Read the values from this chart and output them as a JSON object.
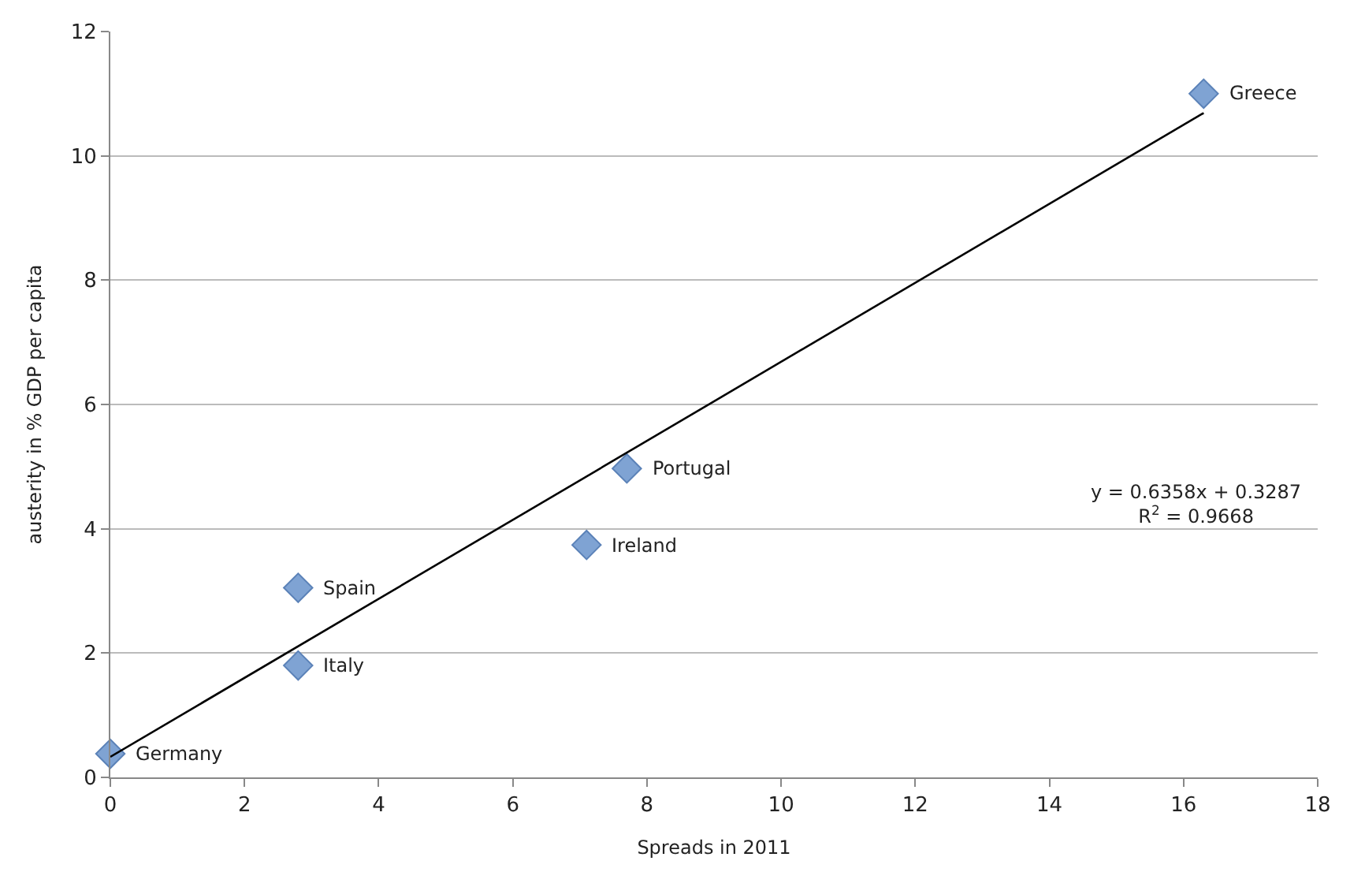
{
  "chart_data": {
    "type": "scatter",
    "xlabel": "Spreads in 2011",
    "ylabel": "austerity in % GDP per capita",
    "x": [
      0,
      2.8,
      2.8,
      7.1,
      7.7,
      16.3
    ],
    "series": [
      {
        "color": "#7fa3d3",
        "marker": "diamond",
        "values": [
          0.38,
          3.05,
          1.8,
          3.74,
          4.97,
          11.0
        ]
      },
      {
        "type": "line",
        "color": "#000000",
        "marker": "none",
        "line_style": "solid",
        "x": [
          0,
          16.3
        ],
        "values": [
          0.33,
          10.69
        ]
      }
    ],
    "annotations": [
      {
        "text": "Germany",
        "x": 0,
        "y": 0.38
      },
      {
        "text": "Spain",
        "x": 2.8,
        "y": 3.05
      },
      {
        "text": "Italy",
        "x": 2.8,
        "y": 1.8
      },
      {
        "text": "Ireland",
        "x": 7.1,
        "y": 3.74
      },
      {
        "text": "Portugal",
        "x": 7.7,
        "y": 4.97
      },
      {
        "text": "Greece",
        "x": 16.3,
        "y": 11.0
      },
      "y = 0.6358x + 0.3287\nR$^{2}$ = 0.9668"
    ],
    "xlim": [
      0,
      18
    ],
    "xticks": [
      0,
      2,
      4,
      6,
      8,
      10,
      12,
      14,
      16,
      18
    ],
    "ylim": [
      0,
      12
    ],
    "yticks": [
      0,
      2,
      4,
      6,
      8,
      10,
      12
    ],
    "grid": "y"
  }
}
